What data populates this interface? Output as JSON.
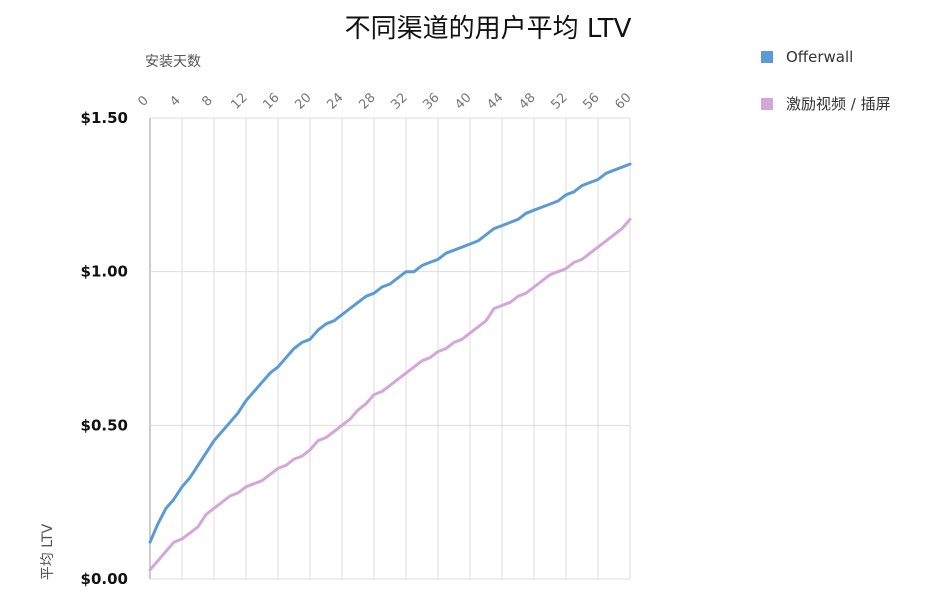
{
  "chart_data": {
    "type": "line",
    "title": "不同渠道的用户平均 LTV",
    "xlabel": "安装天数",
    "ylabel": "平均 LTV",
    "x_axis_position": "top",
    "xlim": [
      0,
      60
    ],
    "ylim": [
      0,
      1.5
    ],
    "x_ticks": [
      0,
      4,
      8,
      12,
      16,
      20,
      24,
      28,
      32,
      36,
      40,
      44,
      48,
      52,
      56,
      60
    ],
    "y_ticks": [
      {
        "value": 0,
        "label": "$0.00"
      },
      {
        "value": 0.5,
        "label": "$0.50"
      },
      {
        "value": 1.0,
        "label": "$1.00"
      },
      {
        "value": 1.5,
        "label": "$1.50"
      }
    ],
    "grid": true,
    "legend_position": "top-right",
    "x": [
      0,
      1,
      2,
      3,
      4,
      5,
      6,
      7,
      8,
      9,
      10,
      11,
      12,
      13,
      14,
      15,
      16,
      17,
      18,
      19,
      20,
      21,
      22,
      23,
      24,
      25,
      26,
      27,
      28,
      29,
      30,
      31,
      32,
      33,
      34,
      35,
      36,
      37,
      38,
      39,
      40,
      41,
      42,
      43,
      44,
      45,
      46,
      47,
      48,
      49,
      50,
      51,
      52,
      53,
      54,
      55,
      56,
      57,
      58,
      59,
      60
    ],
    "series": [
      {
        "name": "Offerwall",
        "color": "#5b9bd5",
        "values": [
          0.12,
          0.18,
          0.23,
          0.26,
          0.3,
          0.33,
          0.37,
          0.41,
          0.45,
          0.48,
          0.51,
          0.54,
          0.58,
          0.61,
          0.64,
          0.67,
          0.69,
          0.72,
          0.75,
          0.77,
          0.78,
          0.81,
          0.83,
          0.84,
          0.86,
          0.88,
          0.9,
          0.92,
          0.93,
          0.95,
          0.96,
          0.98,
          1.0,
          1.0,
          1.02,
          1.03,
          1.04,
          1.06,
          1.07,
          1.08,
          1.09,
          1.1,
          1.12,
          1.14,
          1.15,
          1.16,
          1.17,
          1.19,
          1.2,
          1.21,
          1.22,
          1.23,
          1.25,
          1.26,
          1.28,
          1.29,
          1.3,
          1.32,
          1.33,
          1.34,
          1.35
        ]
      },
      {
        "name": "激励视频 / 插屏",
        "color": "#d4a6d9",
        "values": [
          0.03,
          0.06,
          0.09,
          0.12,
          0.13,
          0.15,
          0.17,
          0.21,
          0.23,
          0.25,
          0.27,
          0.28,
          0.3,
          0.31,
          0.32,
          0.34,
          0.36,
          0.37,
          0.39,
          0.4,
          0.42,
          0.45,
          0.46,
          0.48,
          0.5,
          0.52,
          0.55,
          0.57,
          0.6,
          0.61,
          0.63,
          0.65,
          0.67,
          0.69,
          0.71,
          0.72,
          0.74,
          0.75,
          0.77,
          0.78,
          0.8,
          0.82,
          0.84,
          0.88,
          0.89,
          0.9,
          0.92,
          0.93,
          0.95,
          0.97,
          0.99,
          1.0,
          1.01,
          1.03,
          1.04,
          1.06,
          1.08,
          1.1,
          1.12,
          1.14,
          1.17
        ]
      }
    ]
  }
}
